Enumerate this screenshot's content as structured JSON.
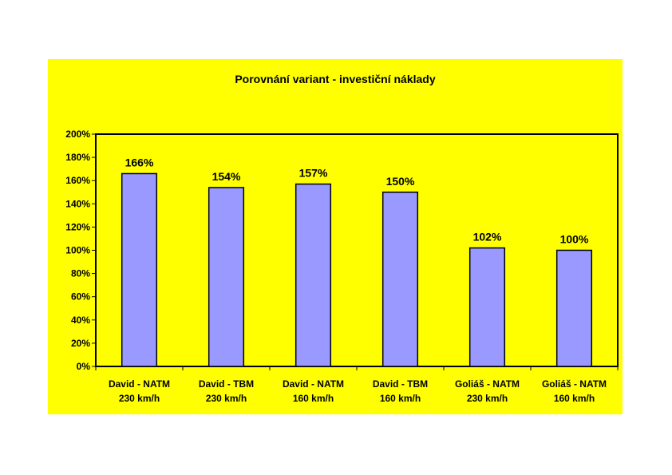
{
  "chart_data": {
    "type": "bar",
    "title": "Porovnání variant - investiční náklady",
    "categories": [
      [
        "David - NATM",
        "230 km/h"
      ],
      [
        "David - TBM",
        "230 km/h"
      ],
      [
        "David - NATM",
        "160 km/h"
      ],
      [
        "David - TBM",
        "160 km/h"
      ],
      [
        "Goliáš - NATM",
        "230 km/h"
      ],
      [
        "Goliáš - NATM",
        "160 km/h"
      ]
    ],
    "values": [
      166,
      154,
      157,
      150,
      102,
      100
    ],
    "data_labels": [
      "166%",
      "154%",
      "157%",
      "150%",
      "102%",
      "100%"
    ],
    "y_ticks": [
      "0%",
      "20%",
      "40%",
      "60%",
      "80%",
      "100%",
      "120%",
      "140%",
      "160%",
      "180%",
      "200%"
    ],
    "ylim": [
      0,
      200
    ],
    "xlabel": "",
    "ylabel": "",
    "grid": false,
    "legend": "none",
    "colors": {
      "background": "#ffff00",
      "plot_area": "#ffff00",
      "bar_fill": "#9999ff",
      "bar_stroke": "#000000",
      "axis": "#000000"
    }
  }
}
